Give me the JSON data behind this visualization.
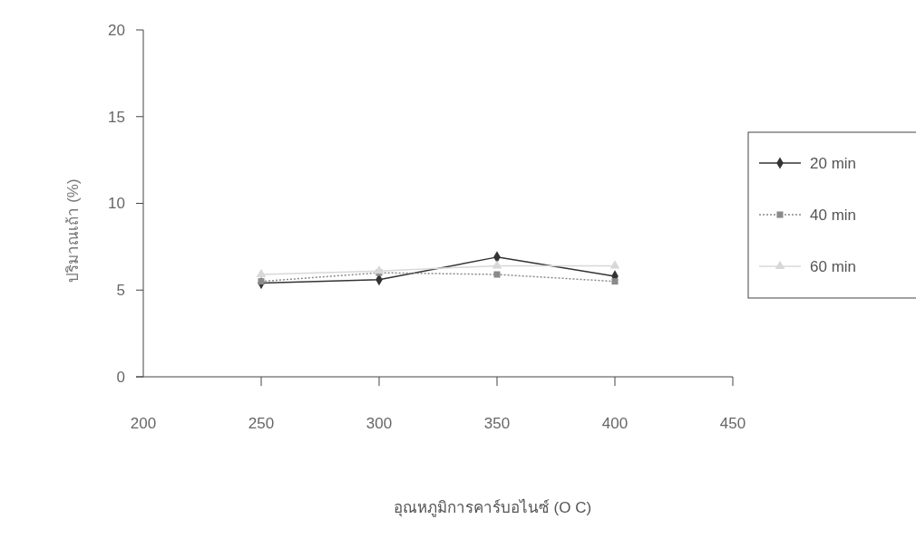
{
  "chart_data": {
    "type": "line",
    "xlabel": "อุณหภูมิการคาร์บอไนซ์ (O C)",
    "ylabel": "ปริมาณเถ้า (%)",
    "x": [
      250,
      300,
      350,
      400
    ],
    "xlim": [
      200,
      450
    ],
    "xticks": [
      200,
      250,
      300,
      350,
      400,
      450
    ],
    "ylim": [
      0,
      20
    ],
    "yticks": [
      0,
      5,
      10,
      15,
      20
    ],
    "grid": false,
    "legend": "right",
    "series": [
      {
        "name": "20 min",
        "color": "#333333",
        "marker": "diamond",
        "line_style": "solid",
        "values": [
          5.4,
          5.6,
          6.9,
          5.8
        ]
      },
      {
        "name": "40 min",
        "color": "#8a8a8a",
        "marker": "square",
        "line_style": "dotted",
        "values": [
          5.5,
          6.0,
          5.9,
          5.5
        ]
      },
      {
        "name": "60 min",
        "color": "#d8d8d8",
        "marker": "triangle",
        "line_style": "solid",
        "values": [
          5.9,
          6.1,
          6.4,
          6.4
        ]
      }
    ]
  }
}
